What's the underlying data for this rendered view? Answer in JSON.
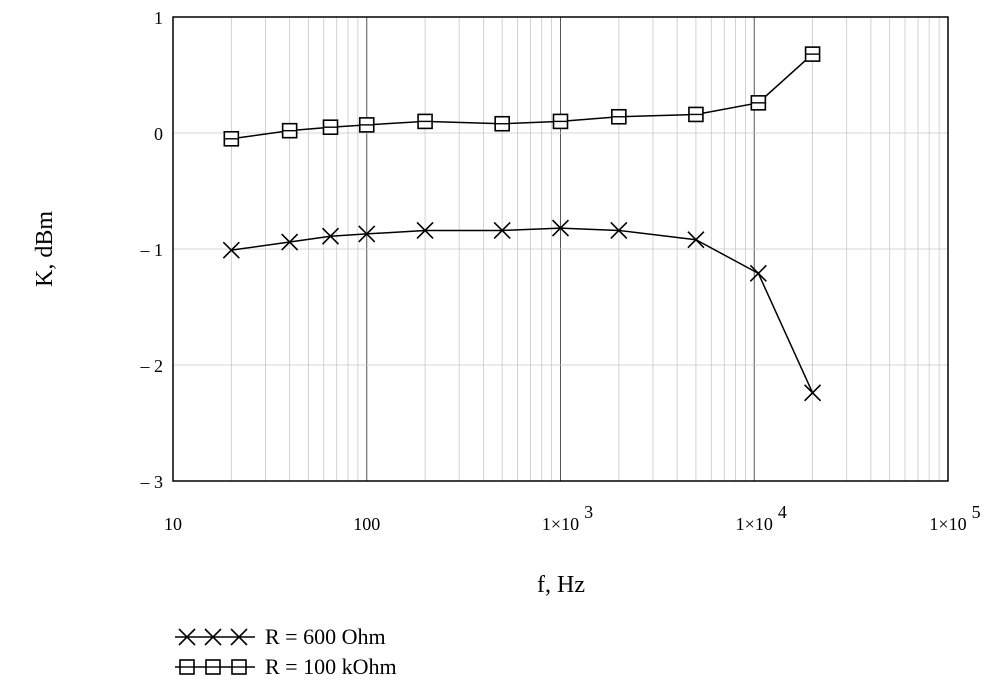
{
  "chart_data": {
    "type": "line",
    "xlabel": "f, Hz",
    "ylabel": "K, dBm",
    "x_scale": "log",
    "xlim": [
      10,
      100000
    ],
    "ylim": [
      -3,
      1
    ],
    "grid": true,
    "legend_position": "bottom",
    "x_tick_labels": [
      {
        "value": 10,
        "mantissa": "10",
        "exp": ""
      },
      {
        "value": 100,
        "mantissa": "100",
        "exp": ""
      },
      {
        "value": 1000,
        "mantissa": "1×10",
        "exp": "3"
      },
      {
        "value": 10000,
        "mantissa": "1×10",
        "exp": "4"
      },
      {
        "value": 100000,
        "mantissa": "1×10",
        "exp": "5"
      }
    ],
    "y_tick_labels": [
      {
        "value": 1,
        "label": "1"
      },
      {
        "value": 0,
        "label": "0"
      },
      {
        "value": -1,
        "label": "– 1"
      },
      {
        "value": -2,
        "label": "– 2"
      },
      {
        "value": -3,
        "label": "– 3"
      }
    ],
    "series": [
      {
        "name": "R = 600 Ohm",
        "marker": "x",
        "x": [
          20,
          40,
          65,
          100,
          200,
          500,
          1000,
          2000,
          5000,
          10500,
          20000
        ],
        "y": [
          -1.01,
          -0.94,
          -0.89,
          -0.87,
          -0.84,
          -0.84,
          -0.82,
          -0.84,
          -0.92,
          -1.21,
          -2.24
        ]
      },
      {
        "name": "R = 100 kOhm",
        "marker": "square",
        "x": [
          20,
          40,
          65,
          100,
          200,
          500,
          1000,
          2000,
          5000,
          10500,
          20000
        ],
        "y": [
          -0.05,
          0.02,
          0.05,
          0.07,
          0.1,
          0.08,
          0.1,
          0.14,
          0.16,
          0.26,
          0.68
        ]
      }
    ]
  }
}
